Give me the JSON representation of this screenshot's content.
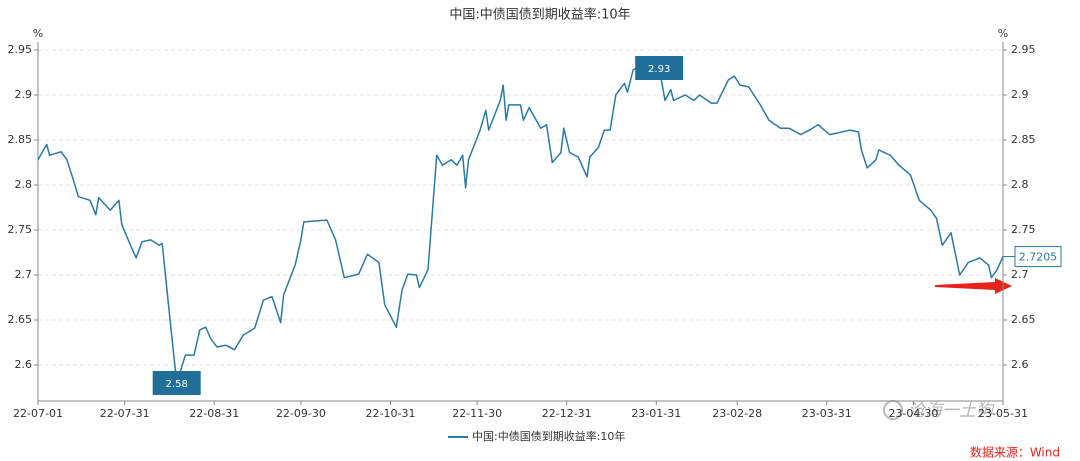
{
  "chart_data": {
    "type": "line",
    "title": "中国:中债国债到期收益率:10年",
    "ylabel": "%",
    "y2label": "%",
    "x": [
      "22-07-01",
      "22-07-04",
      "22-07-05",
      "22-07-09",
      "22-07-11",
      "22-07-13",
      "22-07-15",
      "22-07-19",
      "22-07-21",
      "22-07-22",
      "22-07-26",
      "22-07-29",
      "22-07-30",
      "22-08-02",
      "22-08-04",
      "22-08-06",
      "22-08-09",
      "22-08-12",
      "22-08-13",
      "22-08-15",
      "22-08-18",
      "22-08-21",
      "22-08-24",
      "22-08-26",
      "22-08-28",
      "22-08-30",
      "22-09-01",
      "22-09-04",
      "22-09-07",
      "22-09-10",
      "22-09-14",
      "22-09-17",
      "22-09-20",
      "22-09-23",
      "22-09-24",
      "22-09-28",
      "22-09-30",
      "22-10-01",
      "22-10-09",
      "22-10-12",
      "22-10-15",
      "22-10-20",
      "22-10-23",
      "22-10-27",
      "22-10-29",
      "22-11-02",
      "22-11-04",
      "22-11-06",
      "22-11-09",
      "22-11-10",
      "22-11-13",
      "22-11-16",
      "22-11-18",
      "22-11-21",
      "22-11-23",
      "22-11-25",
      "22-11-26",
      "22-11-27",
      "22-12-01",
      "22-12-03",
      "22-12-04",
      "22-12-08",
      "22-12-09",
      "22-12-10",
      "22-12-11",
      "22-12-15",
      "22-12-16",
      "22-12-18",
      "22-12-22",
      "22-12-24",
      "22-12-26",
      "22-12-29",
      "22-12-30",
      "23-01-01",
      "23-01-04",
      "23-01-07",
      "23-01-08",
      "23-01-11",
      "23-01-13",
      "23-01-15",
      "23-01-17",
      "23-01-20",
      "23-01-21",
      "23-01-23",
      "23-01-25",
      "23-01-29",
      "23-02-01",
      "23-02-03",
      "23-02-05",
      "23-02-06",
      "23-02-10",
      "23-02-13",
      "23-02-15",
      "23-02-19",
      "23-02-21",
      "23-02-25",
      "23-02-27",
      "23-03-01",
      "23-03-04",
      "23-03-08",
      "23-03-11",
      "23-03-15",
      "23-03-18",
      "23-03-22",
      "23-03-25",
      "23-03-28",
      "23-04-01",
      "23-04-04",
      "23-04-08",
      "23-04-11",
      "23-04-12",
      "23-04-14",
      "23-04-17",
      "23-04-18",
      "23-04-22",
      "23-04-25",
      "23-04-29",
      "23-05-02",
      "23-05-06",
      "23-05-08",
      "23-05-10",
      "23-05-13",
      "23-05-16",
      "23-05-19",
      "23-05-23",
      "23-05-26",
      "23-05-27",
      "23-05-29",
      "23-05-31"
    ],
    "series": [
      {
        "name": "中国:中债国债到期收益率:10年",
        "color": "#2a7aa6",
        "values": [
          2.828,
          2.845,
          2.833,
          2.837,
          2.828,
          2.808,
          2.787,
          2.783,
          2.767,
          2.786,
          2.772,
          2.783,
          2.756,
          2.733,
          2.719,
          2.737,
          2.739,
          2.733,
          2.735,
          2.672,
          2.58,
          2.611,
          2.611,
          2.639,
          2.642,
          2.628,
          2.62,
          2.622,
          2.617,
          2.633,
          2.641,
          2.672,
          2.676,
          2.647,
          2.678,
          2.711,
          2.739,
          2.759,
          2.761,
          2.739,
          2.697,
          2.701,
          2.723,
          2.714,
          2.667,
          2.642,
          2.683,
          2.701,
          2.7,
          2.686,
          2.706,
          2.833,
          2.822,
          2.828,
          2.822,
          2.833,
          2.797,
          2.828,
          2.861,
          2.883,
          2.861,
          2.894,
          2.911,
          2.872,
          2.889,
          2.889,
          2.872,
          2.886,
          2.863,
          2.867,
          2.825,
          2.836,
          2.863,
          2.836,
          2.831,
          2.809,
          2.831,
          2.842,
          2.861,
          2.861,
          2.9,
          2.913,
          2.903,
          2.928,
          2.931,
          2.928,
          2.93,
          2.894,
          2.906,
          2.894,
          2.9,
          2.894,
          2.9,
          2.891,
          2.891,
          2.917,
          2.921,
          2.911,
          2.909,
          2.889,
          2.872,
          2.863,
          2.863,
          2.856,
          2.861,
          2.867,
          2.856,
          2.858,
          2.861,
          2.859,
          2.839,
          2.819,
          2.828,
          2.839,
          2.833,
          2.822,
          2.811,
          2.783,
          2.772,
          2.763,
          2.733,
          2.747,
          2.7,
          2.714,
          2.719,
          2.711,
          2.697,
          2.706,
          2.7205
        ]
      }
    ],
    "xlim": [
      "22-07-01",
      "23-05-31"
    ],
    "xticks": [
      "22-07-01",
      "22-07-31",
      "22-08-31",
      "22-09-30",
      "22-10-31",
      "22-11-30",
      "22-12-31",
      "23-01-31",
      "23-02-28",
      "23-03-31",
      "23-04-30",
      "23-05-31"
    ],
    "ylim": [
      2.56,
      2.95
    ],
    "yticks": [
      2.6,
      2.65,
      2.7,
      2.75,
      2.8,
      2.85,
      2.9,
      2.95
    ],
    "y2lim": [
      2.56,
      2.95
    ],
    "y2ticks": [
      2.6,
      2.65,
      2.7,
      2.75,
      2.8,
      2.85,
      2.9,
      2.95
    ],
    "grid": true,
    "annotations": [
      {
        "x": "22-08-18",
        "value": 2.58,
        "style": "box"
      },
      {
        "x": "23-02-01",
        "value": 2.93,
        "style": "box"
      },
      {
        "x": "23-05-31",
        "value": 2.7205,
        "style": "outline"
      }
    ],
    "watermark": "沧海一土狗",
    "source": "数据来源：Wind"
  }
}
